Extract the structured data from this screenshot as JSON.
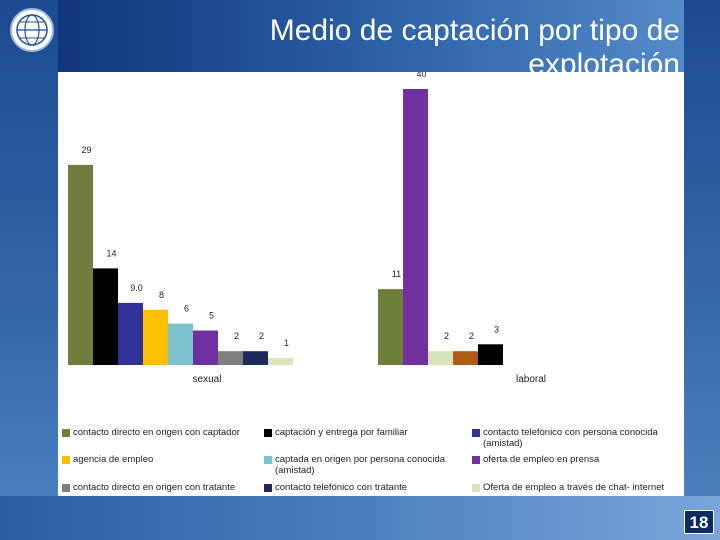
{
  "slide": {
    "title": "Medio de captación por tipo de explotación",
    "page_number": "18"
  },
  "chart_data": {
    "type": "bar",
    "categories": [
      "sexual",
      "laboral"
    ],
    "ylim": [
      0,
      42
    ],
    "grid": false,
    "legend_position": "bottom",
    "series": [
      {
        "name": "contacto directo en origen con captador",
        "color": "#6d7f3b",
        "values": [
          29,
          11
        ],
        "labels": [
          "29",
          "11"
        ]
      },
      {
        "name": "captación y entrega por familiar",
        "color": "#000000",
        "values": [
          14,
          null
        ],
        "labels": [
          "14",
          ""
        ]
      },
      {
        "name": "contacto telefónico con persona conocida (amistad)",
        "color": "#30329a",
        "values": [
          9,
          null
        ],
        "labels": [
          "9.0",
          ""
        ]
      },
      {
        "name": "agencia de empleo",
        "color": "#ffc000",
        "values": [
          8,
          null
        ],
        "labels": [
          "8",
          ""
        ]
      },
      {
        "name": "captada en origen por persona conocida (amistad)",
        "color": "#7cc3cf",
        "values": [
          6,
          null
        ],
        "labels": [
          "6",
          ""
        ]
      },
      {
        "name": "oferta de empleo en prensa",
        "color": "#7030a0",
        "values": [
          5,
          40
        ],
        "labels": [
          "5",
          "40"
        ]
      },
      {
        "name": "contacto directo en origen con tratante",
        "color": "#7f7f7f",
        "values": [
          2,
          null
        ],
        "labels": [
          "2",
          ""
        ]
      },
      {
        "name": "contacto telefónico con tratante",
        "color": "#1f2a5c",
        "values": [
          2,
          null
        ],
        "labels": [
          "2",
          ""
        ]
      },
      {
        "name": "Oferta de empleo a través de chat- internet",
        "color": "#d6e3bc",
        "values": [
          1,
          2
        ],
        "labels": [
          "1",
          "2"
        ]
      },
      {
        "name": "",
        "color": "#b05a13",
        "values": [
          null,
          2
        ],
        "labels": [
          "",
          "2"
        ]
      },
      {
        "name": "",
        "color": "#000000",
        "values": [
          null,
          3
        ],
        "labels": [
          "",
          "3"
        ]
      }
    ]
  },
  "legend": [
    {
      "label": "contacto directo en origen con captador",
      "color": "#6d7f3b"
    },
    {
      "label": "captación y entrega por familiar",
      "color": "#000000"
    },
    {
      "label": "contacto telefónico con persona conocida (amistad)",
      "color": "#30329a"
    },
    {
      "label": "agencia de empleo",
      "color": "#ffc000"
    },
    {
      "label": "captada en origen por persona conocida (amistad)",
      "color": "#7cc3cf"
    },
    {
      "label": "oferta de empleo en prensa",
      "color": "#7030a0"
    },
    {
      "label": "contacto directo en origen con tratante",
      "color": "#7f7f7f"
    },
    {
      "label": "contacto telefónico con tratante",
      "color": "#1f2a5c"
    },
    {
      "label": "Oferta de empleo a través de chat- internet",
      "color": "#d6e3bc"
    }
  ]
}
